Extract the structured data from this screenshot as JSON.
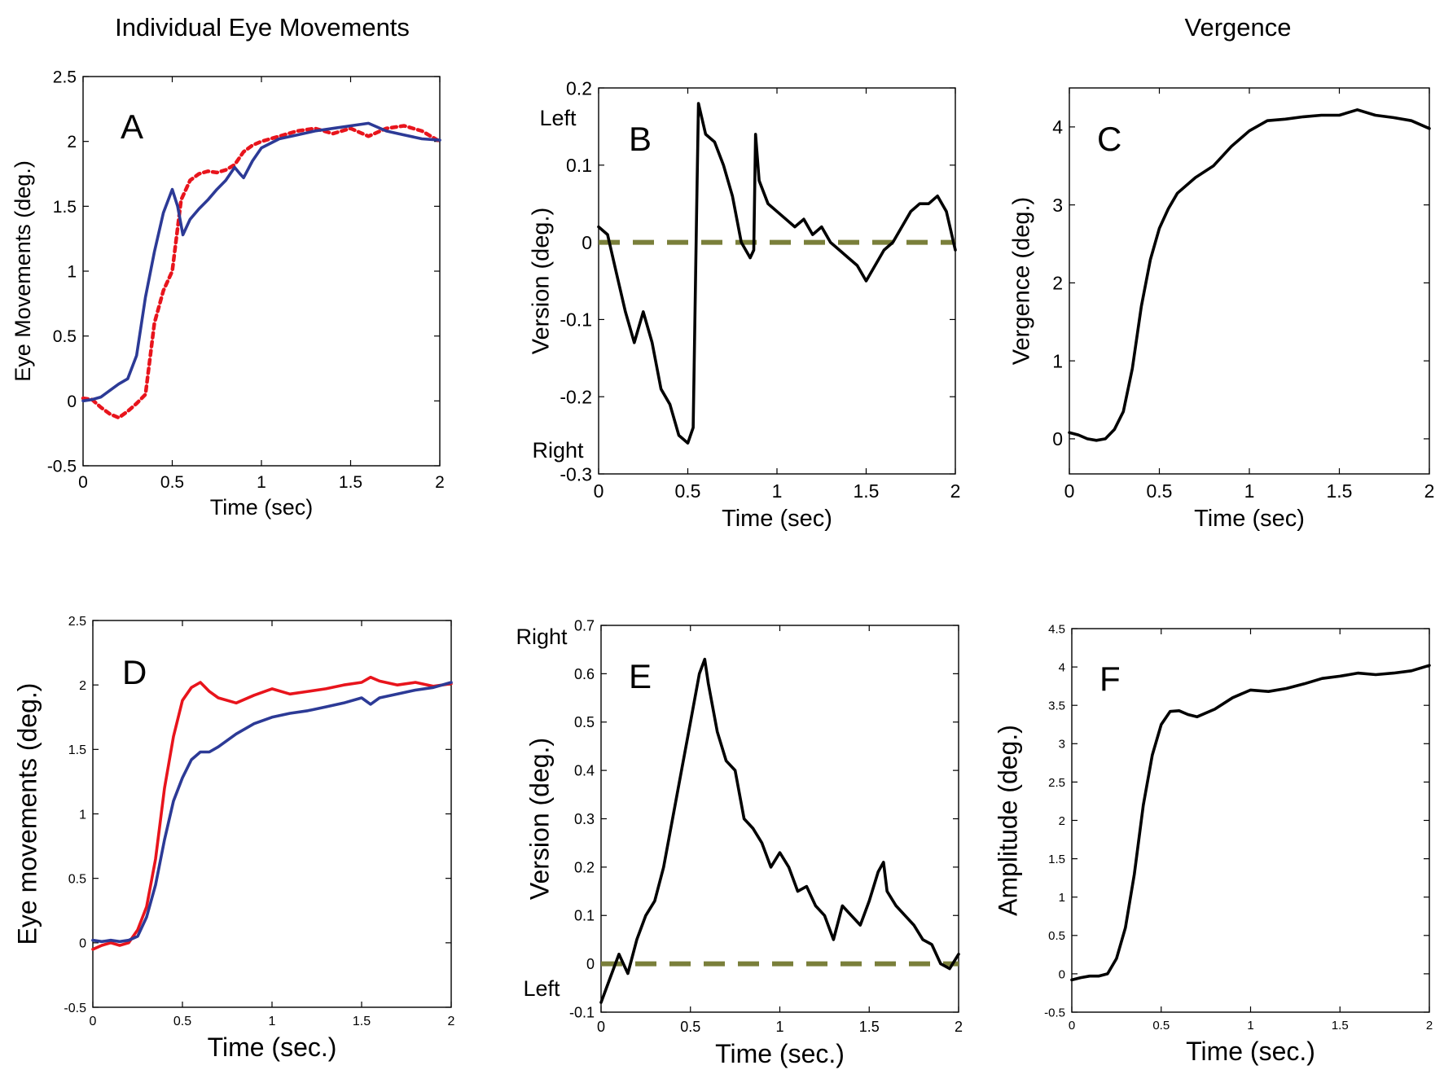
{
  "headings": {
    "left": "Individual Eye Movements",
    "right": "Vergence"
  },
  "colors": {
    "left_eye": "#e8141c",
    "right_eye": "#2c3a96",
    "trace": "#000000",
    "reference": "#7a7f3a"
  },
  "chart_data": [
    {
      "id": "A",
      "type": "line",
      "letter": "A",
      "xlabel": "Time (sec)",
      "ylabel": "Eye Movements (deg.)",
      "xlim": [
        0,
        2
      ],
      "ylim": [
        -0.5,
        2.5
      ],
      "xticks": [
        0,
        0.5,
        1,
        1.5,
        2
      ],
      "xtick_labels": [
        "0",
        "0.5",
        "1",
        "1.5",
        "2"
      ],
      "yticks": [
        -0.5,
        0,
        0.5,
        1,
        1.5,
        2,
        2.5
      ],
      "ytick_labels": [
        "-0.5",
        "0",
        "0.5",
        "1",
        "1.5",
        "2",
        "2.5"
      ],
      "series": [
        {
          "name": "red (dotted)",
          "color": "#e8141c",
          "style": "dotted",
          "x": [
            0,
            0.05,
            0.1,
            0.15,
            0.2,
            0.25,
            0.3,
            0.35,
            0.4,
            0.45,
            0.5,
            0.55,
            0.6,
            0.65,
            0.7,
            0.75,
            0.8,
            0.85,
            0.9,
            0.95,
            1.0,
            1.1,
            1.2,
            1.3,
            1.4,
            1.5,
            1.6,
            1.7,
            1.8,
            1.9,
            2.0
          ],
          "y": [
            0.02,
            0.01,
            -0.05,
            -0.1,
            -0.13,
            -0.08,
            -0.02,
            0.05,
            0.6,
            0.85,
            1.0,
            1.55,
            1.7,
            1.75,
            1.77,
            1.76,
            1.78,
            1.82,
            1.92,
            1.97,
            2.0,
            2.04,
            2.08,
            2.1,
            2.06,
            2.1,
            2.04,
            2.1,
            2.12,
            2.08,
            2.0
          ]
        },
        {
          "name": "blue (solid)",
          "color": "#2c3a96",
          "style": "solid",
          "x": [
            0,
            0.05,
            0.1,
            0.15,
            0.2,
            0.25,
            0.3,
            0.35,
            0.4,
            0.45,
            0.5,
            0.53,
            0.56,
            0.6,
            0.65,
            0.7,
            0.75,
            0.8,
            0.85,
            0.88,
            0.9,
            0.95,
            1.0,
            1.1,
            1.2,
            1.3,
            1.4,
            1.5,
            1.6,
            1.7,
            1.8,
            1.9,
            2.0
          ],
          "y": [
            0.0,
            0.01,
            0.03,
            0.08,
            0.13,
            0.17,
            0.35,
            0.8,
            1.15,
            1.45,
            1.63,
            1.5,
            1.28,
            1.4,
            1.48,
            1.55,
            1.63,
            1.7,
            1.8,
            1.75,
            1.72,
            1.85,
            1.95,
            2.02,
            2.05,
            2.08,
            2.1,
            2.12,
            2.14,
            2.08,
            2.05,
            2.02,
            2.01
          ]
        }
      ]
    },
    {
      "id": "B",
      "type": "line",
      "letter": "B",
      "xlabel": "Time (sec)",
      "ylabel": "Version (deg.)",
      "top_label": "Left",
      "bottom_label": "Right",
      "xlim": [
        0,
        2
      ],
      "ylim": [
        -0.3,
        0.2
      ],
      "xticks": [
        0,
        0.5,
        1,
        1.5,
        2
      ],
      "xtick_labels": [
        "0",
        "0.5",
        "1",
        "1.5",
        "2"
      ],
      "yticks": [
        -0.3,
        -0.2,
        -0.1,
        0,
        0.1,
        0.2
      ],
      "ytick_labels": [
        "-0.3",
        "-0.2",
        "-0.1",
        "0",
        "0.1",
        "0.2"
      ],
      "reference_y": 0,
      "series": [
        {
          "name": "version",
          "color": "#000000",
          "style": "solid",
          "x": [
            0,
            0.05,
            0.1,
            0.15,
            0.2,
            0.25,
            0.3,
            0.35,
            0.4,
            0.45,
            0.5,
            0.53,
            0.55,
            0.56,
            0.6,
            0.65,
            0.7,
            0.75,
            0.8,
            0.85,
            0.87,
            0.88,
            0.9,
            0.95,
            1.0,
            1.05,
            1.1,
            1.15,
            1.2,
            1.25,
            1.3,
            1.35,
            1.4,
            1.45,
            1.5,
            1.55,
            1.6,
            1.65,
            1.7,
            1.75,
            1.8,
            1.85,
            1.9,
            1.95,
            2.0
          ],
          "y": [
            0.02,
            0.01,
            -0.04,
            -0.09,
            -0.13,
            -0.09,
            -0.13,
            -0.19,
            -0.21,
            -0.25,
            -0.26,
            -0.24,
            0.05,
            0.18,
            0.14,
            0.13,
            0.1,
            0.06,
            0.0,
            -0.02,
            -0.01,
            0.14,
            0.08,
            0.05,
            0.04,
            0.03,
            0.02,
            0.03,
            0.01,
            0.02,
            0.0,
            -0.01,
            -0.02,
            -0.03,
            -0.05,
            -0.03,
            -0.01,
            0.0,
            0.02,
            0.04,
            0.05,
            0.05,
            0.06,
            0.04,
            -0.01
          ]
        }
      ]
    },
    {
      "id": "C",
      "type": "line",
      "letter": "C",
      "xlabel": "Time (sec)",
      "ylabel": "Vergence (deg.)",
      "xlim": [
        0,
        2
      ],
      "ylim": [
        -0.45,
        4.5
      ],
      "xticks": [
        0,
        0.5,
        1,
        1.5,
        2
      ],
      "xtick_labels": [
        "0",
        "0.5",
        "1",
        "1.5",
        "2"
      ],
      "yticks": [
        0,
        1,
        2,
        3,
        4
      ],
      "ytick_labels": [
        "0",
        "1",
        "2",
        "3",
        "4"
      ],
      "series": [
        {
          "name": "vergence",
          "color": "#000000",
          "style": "solid",
          "x": [
            0,
            0.05,
            0.1,
            0.15,
            0.2,
            0.25,
            0.3,
            0.35,
            0.4,
            0.45,
            0.5,
            0.55,
            0.6,
            0.7,
            0.8,
            0.9,
            1.0,
            1.1,
            1.2,
            1.3,
            1.4,
            1.5,
            1.6,
            1.7,
            1.8,
            1.9,
            2.0
          ],
          "y": [
            0.08,
            0.05,
            0.0,
            -0.02,
            0.0,
            0.12,
            0.35,
            0.9,
            1.7,
            2.3,
            2.7,
            2.95,
            3.15,
            3.35,
            3.5,
            3.75,
            3.95,
            4.08,
            4.1,
            4.13,
            4.15,
            4.15,
            4.22,
            4.15,
            4.12,
            4.08,
            3.98
          ]
        }
      ]
    },
    {
      "id": "D",
      "type": "line",
      "letter": "D",
      "xlabel": "Time (sec.)",
      "ylabel": "Eye movements (deg.)",
      "xlim": [
        0,
        2
      ],
      "ylim": [
        -0.5,
        2.5
      ],
      "xticks": [
        0,
        0.5,
        1,
        1.5,
        2
      ],
      "xtick_labels": [
        "0",
        "0.5",
        "1",
        "1.5",
        "2"
      ],
      "yticks": [
        -0.5,
        0,
        0.5,
        1,
        1.5,
        2,
        2.5
      ],
      "ytick_labels": [
        "-0.5",
        "0",
        "0.5",
        "1",
        "1.5",
        "2",
        "2.5"
      ],
      "series": [
        {
          "name": "red",
          "color": "#e8141c",
          "style": "solid",
          "x": [
            0,
            0.05,
            0.1,
            0.15,
            0.2,
            0.25,
            0.3,
            0.35,
            0.4,
            0.45,
            0.5,
            0.55,
            0.6,
            0.65,
            0.7,
            0.8,
            0.9,
            1.0,
            1.1,
            1.2,
            1.3,
            1.4,
            1.5,
            1.55,
            1.6,
            1.7,
            1.8,
            1.9,
            2.0
          ],
          "y": [
            -0.05,
            -0.02,
            0.0,
            -0.02,
            0.0,
            0.1,
            0.28,
            0.65,
            1.2,
            1.6,
            1.88,
            1.98,
            2.02,
            1.95,
            1.9,
            1.86,
            1.92,
            1.97,
            1.93,
            1.95,
            1.97,
            2.0,
            2.02,
            2.06,
            2.03,
            2.0,
            2.02,
            1.99,
            2.01
          ]
        },
        {
          "name": "blue",
          "color": "#2c3a96",
          "style": "solid",
          "x": [
            0,
            0.05,
            0.1,
            0.15,
            0.2,
            0.25,
            0.3,
            0.35,
            0.4,
            0.45,
            0.5,
            0.55,
            0.6,
            0.65,
            0.7,
            0.8,
            0.9,
            1.0,
            1.1,
            1.2,
            1.3,
            1.4,
            1.5,
            1.55,
            1.6,
            1.7,
            1.8,
            1.9,
            2.0
          ],
          "y": [
            0.02,
            0.01,
            0.02,
            0.01,
            0.02,
            0.05,
            0.2,
            0.45,
            0.8,
            1.1,
            1.28,
            1.42,
            1.48,
            1.48,
            1.52,
            1.62,
            1.7,
            1.75,
            1.78,
            1.8,
            1.83,
            1.86,
            1.9,
            1.85,
            1.9,
            1.93,
            1.96,
            1.98,
            2.02
          ]
        }
      ]
    },
    {
      "id": "E",
      "type": "line",
      "letter": "E",
      "xlabel": "Time (sec.)",
      "ylabel": "Version (deg.)",
      "top_label": "Right",
      "bottom_label": "Left",
      "xlim": [
        0,
        2
      ],
      "ylim": [
        -0.1,
        0.7
      ],
      "xticks": [
        0,
        0.5,
        1,
        1.5,
        2
      ],
      "xtick_labels": [
        "0",
        "0.5",
        "1",
        "1.5",
        "2"
      ],
      "yticks": [
        -0.1,
        0,
        0.1,
        0.2,
        0.3,
        0.4,
        0.5,
        0.6,
        0.7
      ],
      "ytick_labels": [
        "-0.1",
        "0",
        "0.1",
        "0.2",
        "0.3",
        "0.4",
        "0.5",
        "0.6",
        "0.7"
      ],
      "reference_y": 0,
      "series": [
        {
          "name": "version",
          "color": "#000000",
          "style": "solid",
          "x": [
            0,
            0.05,
            0.1,
            0.15,
            0.2,
            0.25,
            0.3,
            0.35,
            0.4,
            0.45,
            0.5,
            0.55,
            0.58,
            0.6,
            0.65,
            0.7,
            0.75,
            0.8,
            0.85,
            0.9,
            0.95,
            1.0,
            1.05,
            1.1,
            1.15,
            1.2,
            1.25,
            1.3,
            1.35,
            1.4,
            1.45,
            1.5,
            1.55,
            1.58,
            1.6,
            1.65,
            1.7,
            1.75,
            1.8,
            1.85,
            1.9,
            1.95,
            2.0
          ],
          "y": [
            -0.08,
            -0.03,
            0.02,
            -0.02,
            0.05,
            0.1,
            0.13,
            0.2,
            0.3,
            0.4,
            0.5,
            0.6,
            0.63,
            0.58,
            0.48,
            0.42,
            0.4,
            0.3,
            0.28,
            0.25,
            0.2,
            0.23,
            0.2,
            0.15,
            0.16,
            0.12,
            0.1,
            0.05,
            0.12,
            0.1,
            0.08,
            0.13,
            0.19,
            0.21,
            0.15,
            0.12,
            0.1,
            0.08,
            0.05,
            0.04,
            0.0,
            -0.01,
            0.02
          ]
        }
      ]
    },
    {
      "id": "F",
      "type": "line",
      "letter": "F",
      "xlabel": "Time (sec.)",
      "ylabel": "Amplitude (deg.)",
      "xlim": [
        0,
        2
      ],
      "ylim": [
        -0.5,
        4.5
      ],
      "xticks": [
        0,
        0.5,
        1,
        1.5,
        2
      ],
      "xtick_labels": [
        "0",
        "0.5",
        "1",
        "1.5",
        "2"
      ],
      "yticks": [
        -0.5,
        0,
        0.5,
        1,
        1.5,
        2,
        2.5,
        3,
        3.5,
        4,
        4.5
      ],
      "ytick_labels": [
        "-0.5",
        "0",
        "0.5",
        "1",
        "1.5",
        "2",
        "2.5",
        "3",
        "3.5",
        "4",
        "4.5"
      ],
      "series": [
        {
          "name": "vergence",
          "color": "#000000",
          "style": "solid",
          "x": [
            0,
            0.05,
            0.1,
            0.15,
            0.2,
            0.25,
            0.3,
            0.35,
            0.4,
            0.45,
            0.5,
            0.55,
            0.6,
            0.65,
            0.7,
            0.8,
            0.9,
            1.0,
            1.1,
            1.2,
            1.3,
            1.4,
            1.5,
            1.6,
            1.7,
            1.8,
            1.9,
            2.0
          ],
          "y": [
            -0.08,
            -0.05,
            -0.03,
            -0.03,
            0.0,
            0.2,
            0.6,
            1.3,
            2.2,
            2.85,
            3.25,
            3.42,
            3.43,
            3.38,
            3.35,
            3.45,
            3.6,
            3.7,
            3.68,
            3.72,
            3.78,
            3.85,
            3.88,
            3.92,
            3.9,
            3.92,
            3.95,
            4.02
          ]
        }
      ]
    }
  ]
}
